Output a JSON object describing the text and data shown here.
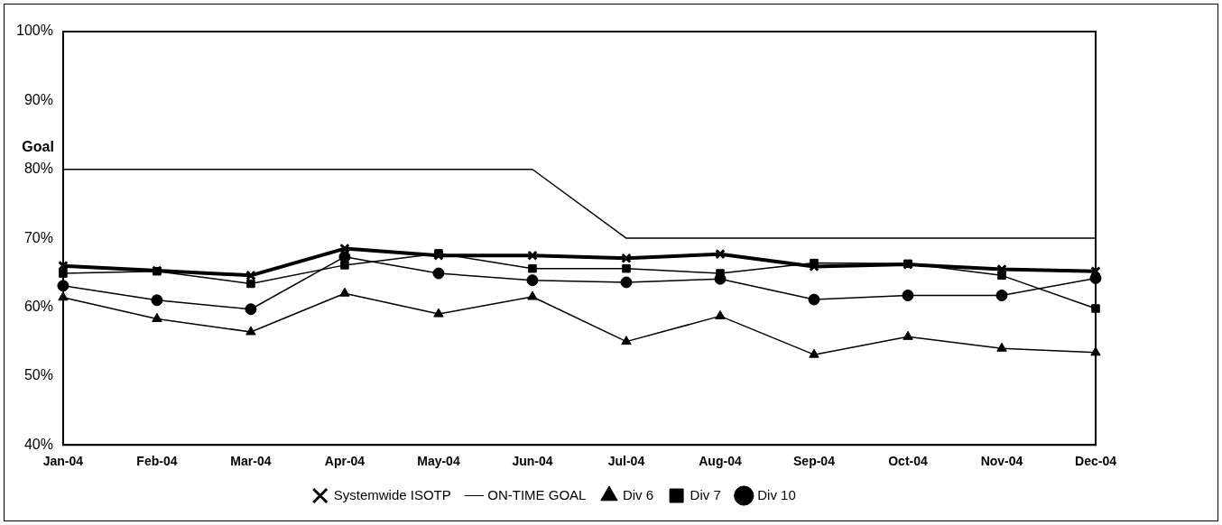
{
  "chart_data": {
    "type": "line",
    "categories": [
      "Jan-04",
      "Feb-04",
      "Mar-04",
      "Apr-04",
      "May-04",
      "Jun-04",
      "Jul-04",
      "Aug-04",
      "Sep-04",
      "Oct-04",
      "Nov-04",
      "Dec-04"
    ],
    "ylim": [
      40,
      100
    ],
    "yticks": [
      {
        "value": 40,
        "label": "40%"
      },
      {
        "value": 50,
        "label": "50%"
      },
      {
        "value": 60,
        "label": "60%"
      },
      {
        "value": 70,
        "label": "70%"
      },
      {
        "value": 80,
        "label": "80%"
      },
      {
        "value": 90,
        "label": "90%"
      },
      {
        "value": 100,
        "label": "100%"
      }
    ],
    "grid": false,
    "legend": "bottom",
    "line_style": "solid",
    "annotations": [
      "Goal"
    ],
    "series": [
      {
        "name": "Systemwide ISOTP",
        "color": "#000000",
        "marker": "cross",
        "values": [
          66.0,
          65.3,
          64.6,
          68.5,
          67.5,
          67.5,
          67.1,
          67.7,
          65.9,
          66.2,
          65.5,
          65.2
        ]
      },
      {
        "name": "ON-TIME GOAL",
        "color": "#000000",
        "marker": "none",
        "values": [
          80,
          80,
          80,
          80,
          80,
          80,
          70,
          70,
          70,
          70,
          70,
          70
        ]
      },
      {
        "name": "Div 6",
        "color": "#000000",
        "marker": "triangle",
        "values": [
          61.4,
          58.3,
          56.4,
          62.0,
          59.0,
          61.5,
          55.0,
          58.7,
          53.1,
          55.7,
          54.0,
          53.4
        ]
      },
      {
        "name": "Div 7",
        "color": "#000000",
        "marker": "square",
        "values": [
          64.9,
          65.2,
          63.4,
          66.1,
          67.8,
          65.6,
          65.6,
          64.9,
          66.4,
          66.3,
          64.6,
          59.8
        ]
      },
      {
        "name": "Div 10",
        "color": "#000000",
        "marker": "circle",
        "values": [
          63.1,
          61.0,
          59.7,
          67.3,
          64.9,
          63.9,
          63.6,
          64.1,
          61.1,
          61.7,
          61.7,
          64.2
        ]
      }
    ]
  }
}
